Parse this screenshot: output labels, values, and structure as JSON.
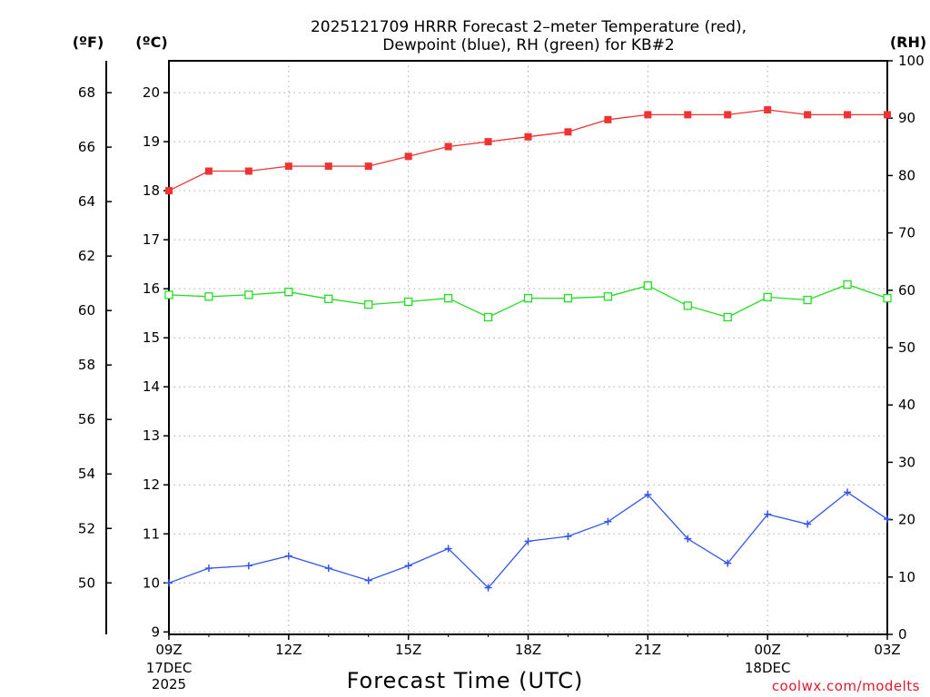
{
  "colors": {
    "temp": "#ee3333",
    "dew": "#3355ee",
    "rh": "#22dd22",
    "credit": "#e0182a"
  },
  "chart_data": {
    "type": "line",
    "title": [
      "2025121709 HRRR Forecast 2–meter Temperature (red),",
      "Dewpoint (blue), RH (green) for KB#2"
    ],
    "xlabel": "Forecast Time (UTC)",
    "unit_labels": {
      "fahrenheit": "(ºF)",
      "celsius": "(ºC)",
      "rh": "(RH)"
    },
    "credit": "coolwx.com/modelts",
    "x_hours": [
      0,
      1,
      2,
      3,
      4,
      5,
      6,
      7,
      8,
      9,
      10,
      11,
      12,
      13,
      14,
      15,
      16,
      17,
      18
    ],
    "x_ticks": [
      {
        "hour": 0,
        "label": "09Z",
        "sub": [
          "17DEC",
          "2025"
        ]
      },
      {
        "hour": 3,
        "label": "12Z",
        "sub": []
      },
      {
        "hour": 6,
        "label": "15Z",
        "sub": []
      },
      {
        "hour": 9,
        "label": "18Z",
        "sub": []
      },
      {
        "hour": 12,
        "label": "21Z",
        "sub": []
      },
      {
        "hour": 15,
        "label": "00Z",
        "sub": [
          "18DEC"
        ]
      },
      {
        "hour": 18,
        "label": "03Z",
        "sub": []
      }
    ],
    "xlim": [
      0,
      18
    ],
    "celsius_ylim": [
      8.95,
      20.65
    ],
    "celsius_ticks": [
      "9",
      "10",
      "11",
      "12",
      "13",
      "14",
      "15",
      "16",
      "17",
      "18",
      "19",
      "20"
    ],
    "fahrenheit_ticks": [
      "50",
      "52",
      "54",
      "56",
      "58",
      "60",
      "62",
      "64",
      "66",
      "68"
    ],
    "rh_ylim": [
      0,
      100
    ],
    "rh_ticks": [
      "0",
      "10",
      "20",
      "30",
      "40",
      "50",
      "60",
      "70",
      "80",
      "90",
      "100"
    ],
    "series": [
      {
        "name": "Temperature",
        "key": "temp",
        "axis": "celsius",
        "marker": "filled-square",
        "values": [
          18.0,
          18.4,
          18.4,
          18.5,
          18.5,
          18.5,
          18.7,
          18.9,
          19.0,
          19.1,
          19.2,
          19.45,
          19.55,
          19.55,
          19.55,
          19.65,
          19.55,
          19.55,
          19.55
        ]
      },
      {
        "name": "Dewpoint",
        "key": "dew",
        "axis": "celsius",
        "marker": "plus",
        "values": [
          10.0,
          10.3,
          10.35,
          10.55,
          10.3,
          10.05,
          10.35,
          10.7,
          9.9,
          10.85,
          10.95,
          11.25,
          11.8,
          10.9,
          10.4,
          11.4,
          11.2,
          11.85,
          11.3
        ]
      },
      {
        "name": "RH",
        "key": "rh",
        "axis": "rh",
        "marker": "open-square",
        "values": [
          59.2,
          58.9,
          59.2,
          59.7,
          58.5,
          57.5,
          58.0,
          58.6,
          55.3,
          58.6,
          58.6,
          58.9,
          60.8,
          57.3,
          55.3,
          58.8,
          58.3,
          61.0,
          58.6
        ]
      }
    ]
  }
}
